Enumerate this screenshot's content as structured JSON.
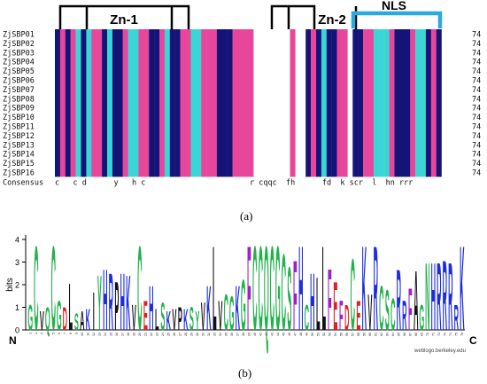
{
  "panel_a": {
    "label": "(a)",
    "domains": [
      {
        "name": "Zn-1"
      },
      {
        "name": "Zn-2"
      },
      {
        "name": "NLS"
      }
    ],
    "sequences": [
      {
        "name": "ZjSBP01",
        "len": "74"
      },
      {
        "name": "ZjSBP02",
        "len": "74"
      },
      {
        "name": "ZjSBP03",
        "len": "74"
      },
      {
        "name": "ZjSBP04",
        "len": "74"
      },
      {
        "name": "ZjSBP05",
        "len": "74"
      },
      {
        "name": "ZjSBP06",
        "len": "74"
      },
      {
        "name": "ZjSBP07",
        "len": "74"
      },
      {
        "name": "ZjSBP08",
        "len": "74"
      },
      {
        "name": "ZjSBP09",
        "len": "74"
      },
      {
        "name": "ZjSBP10",
        "len": "74"
      },
      {
        "name": "ZjSBP11",
        "len": "74"
      },
      {
        "name": "ZjSBP12",
        "len": "74"
      },
      {
        "name": "ZjSBP13",
        "len": "74"
      },
      {
        "name": "ZjSBP14",
        "len": "74"
      },
      {
        "name": "ZjSBP15",
        "len": "74"
      },
      {
        "name": "ZjSBP16",
        "len": "74"
      }
    ],
    "consensus_label": "Consensus",
    "consensus": "c   c d      y   h c                       r cqqc  fh      fd  k scr  l  hn rrr"
  },
  "panel_b": {
    "label": "(b)",
    "ylabel": "bits",
    "yticks": [
      "0",
      "1",
      "2",
      "3",
      "4"
    ],
    "n_label": "N",
    "c_label": "C",
    "credit": "weblogo.berkeley.edu",
    "logo_sequence": "GCVQCGDLSAKIYHRPHKVCEHLSKVPKSYVKLVCGKGFCCQCGCSFHCHLLFEFDCEKVRCSCRRFAGNHRRRRK"
  },
  "colors": {
    "pink": "#e8469a",
    "cyan": "#3ad6d6",
    "navy": "#141478",
    "nls_bar": "#2ea8e0",
    "logo_green": "#22b14c",
    "logo_blue": "#1c2ee0",
    "logo_red": "#e02020",
    "logo_purple": "#a020c8",
    "logo_black": "#111111"
  }
}
